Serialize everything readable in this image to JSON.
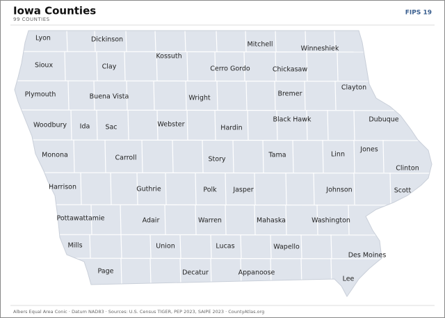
{
  "header": {
    "title": "Iowa Counties",
    "subtitle": "99 COUNTIES",
    "badge": "FIPS 19"
  },
  "counties": [
    "Lyon",
    "Dickinson",
    "Kossuth",
    "Mitchell",
    "Winneshiek",
    "Sioux",
    "Clay",
    "Cerro Gordo",
    "Chickasaw",
    "Clayton",
    "Plymouth",
    "Buena Vista",
    "Wright",
    "Bremer",
    "Woodbury",
    "Ida",
    "Sac",
    "Webster",
    "Hardin",
    "Black Hawk",
    "Dubuque",
    "Jones",
    "Monona",
    "Carroll",
    "Story",
    "Tama",
    "Linn",
    "Clinton",
    "Harrison",
    "Guthrie",
    "Polk",
    "Jasper",
    "Johnson",
    "Scott",
    "Pottawattamie",
    "Adair",
    "Warren",
    "Mahaska",
    "Washington",
    "Mills",
    "Union",
    "Lucas",
    "Wapello",
    "Des Moines",
    "Page",
    "Decatur",
    "Appanoose",
    "Lee"
  ],
  "footer": "Albers Equal Area Conic · Datum NAD83 · Sources: U.S. Census TIGER, PEP 2023, SAIPE 2023 · CountyAtlas.org"
}
